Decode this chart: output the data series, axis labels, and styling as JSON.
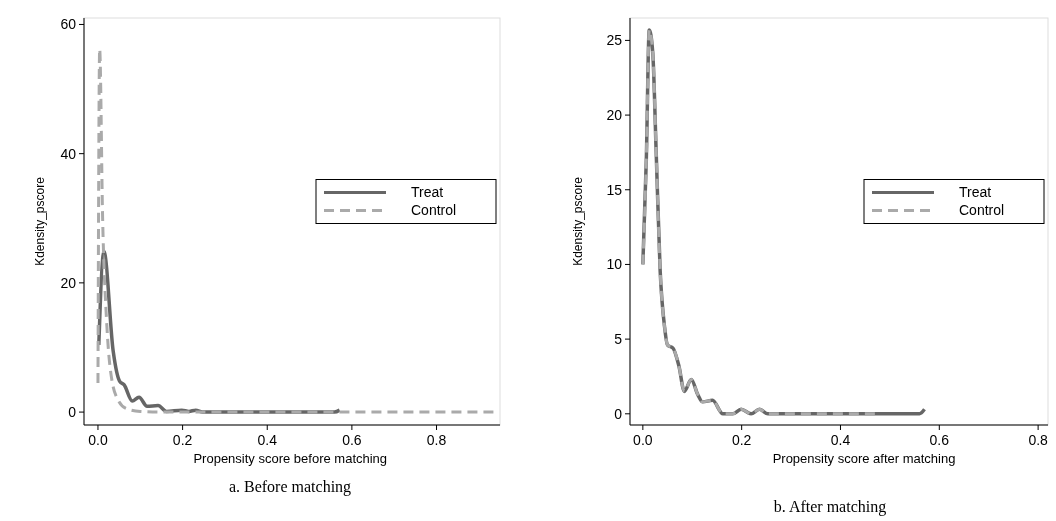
{
  "chart_data": [
    {
      "type": "line",
      "xlabel": "Propensity score before matching",
      "ylabel": "Kdensity_pscore",
      "xlim": [
        -0.033,
        0.95
      ],
      "ylim": [
        -2,
        61
      ],
      "xticks": [
        {
          "value": 0,
          "label": "0.0"
        },
        {
          "value": 0.2,
          "label": "0.2"
        },
        {
          "value": 0.4,
          "label": "0.4"
        },
        {
          "value": 0.6,
          "label": "0.6"
        },
        {
          "value": 0.8,
          "label": "0.8"
        }
      ],
      "yticks": [
        0,
        20,
        40,
        60
      ],
      "legend": "right",
      "grid": false,
      "annotations": [
        "a. Before matching"
      ],
      "series": [
        {
          "name": "Treat",
          "color": "#666666",
          "line_style": "solid",
          "x": [
            0.002,
            0.014,
            0.036,
            0.051,
            0.062,
            0.081,
            0.097,
            0.116,
            0.142,
            0.162,
            0.198,
            0.215,
            0.231,
            0.247,
            0.559,
            0.571
          ],
          "values": [
            10.4,
            24.9,
            9.4,
            4.8,
            4.2,
            1.7,
            2.3,
            0.9,
            1,
            0.1,
            0.3,
            0.1,
            0.3,
            0,
            0,
            0.3
          ]
        },
        {
          "name": "Control",
          "color": "#aaaaaa",
          "line_style": "dashed",
          "x": [
            0,
            0.004,
            0.011,
            0.02,
            0.032,
            0.049,
            0.069,
            0.1,
            0.15,
            0.94
          ],
          "values": [
            4.5,
            56.2,
            30,
            14.6,
            5.3,
            1.7,
            0.5,
            0.1,
            0,
            0
          ]
        }
      ]
    },
    {
      "type": "line",
      "xlabel": "Propensity score after matching",
      "ylabel": "Kdensity_pscore",
      "xlim": [
        -0.026,
        0.82
      ],
      "ylim": [
        -0.75,
        26.5
      ],
      "xticks": [
        {
          "value": 0,
          "label": "0.0"
        },
        {
          "value": 0.2,
          "label": "0.2"
        },
        {
          "value": 0.4,
          "label": "0.4"
        },
        {
          "value": 0.6,
          "label": "0.6"
        },
        {
          "value": 0.8,
          "label": "0.8"
        }
      ],
      "yticks": [
        0,
        5,
        10,
        15,
        20,
        25
      ],
      "legend": "right",
      "grid": false,
      "annotations": [
        "b. After matching"
      ],
      "series": [
        {
          "name": "Treat",
          "color": "#666666",
          "line_style": "solid",
          "x": [
            0,
            0.007,
            0.013,
            0.02,
            0.027,
            0.035,
            0.044,
            0.05,
            0.061,
            0.073,
            0.084,
            0.098,
            0.111,
            0.121,
            0.141,
            0.162,
            0.182,
            0.199,
            0.219,
            0.236,
            0.253,
            0.56,
            0.57
          ],
          "values": [
            10,
            17,
            25.7,
            24.2,
            17.5,
            9.6,
            5.8,
            4.6,
            4.4,
            3.2,
            1.5,
            2.3,
            1.3,
            0.8,
            0.9,
            0,
            0,
            0.3,
            0,
            0.3,
            0,
            0,
            0.3
          ]
        },
        {
          "name": "Control",
          "color": "#aaaaaa",
          "line_style": "dashed",
          "x": [
            0,
            0.007,
            0.013,
            0.02,
            0.027,
            0.035,
            0.044,
            0.05,
            0.061,
            0.073,
            0.084,
            0.098,
            0.111,
            0.121,
            0.141,
            0.162,
            0.182,
            0.199,
            0.219,
            0.236,
            0.253,
            0.47
          ],
          "values": [
            10,
            17,
            25.7,
            24.2,
            17.5,
            9.6,
            5.8,
            4.6,
            4.4,
            3.2,
            1.5,
            2.3,
            1.3,
            0.8,
            0.9,
            0,
            0,
            0.3,
            0,
            0.3,
            0,
            0
          ]
        }
      ]
    }
  ]
}
